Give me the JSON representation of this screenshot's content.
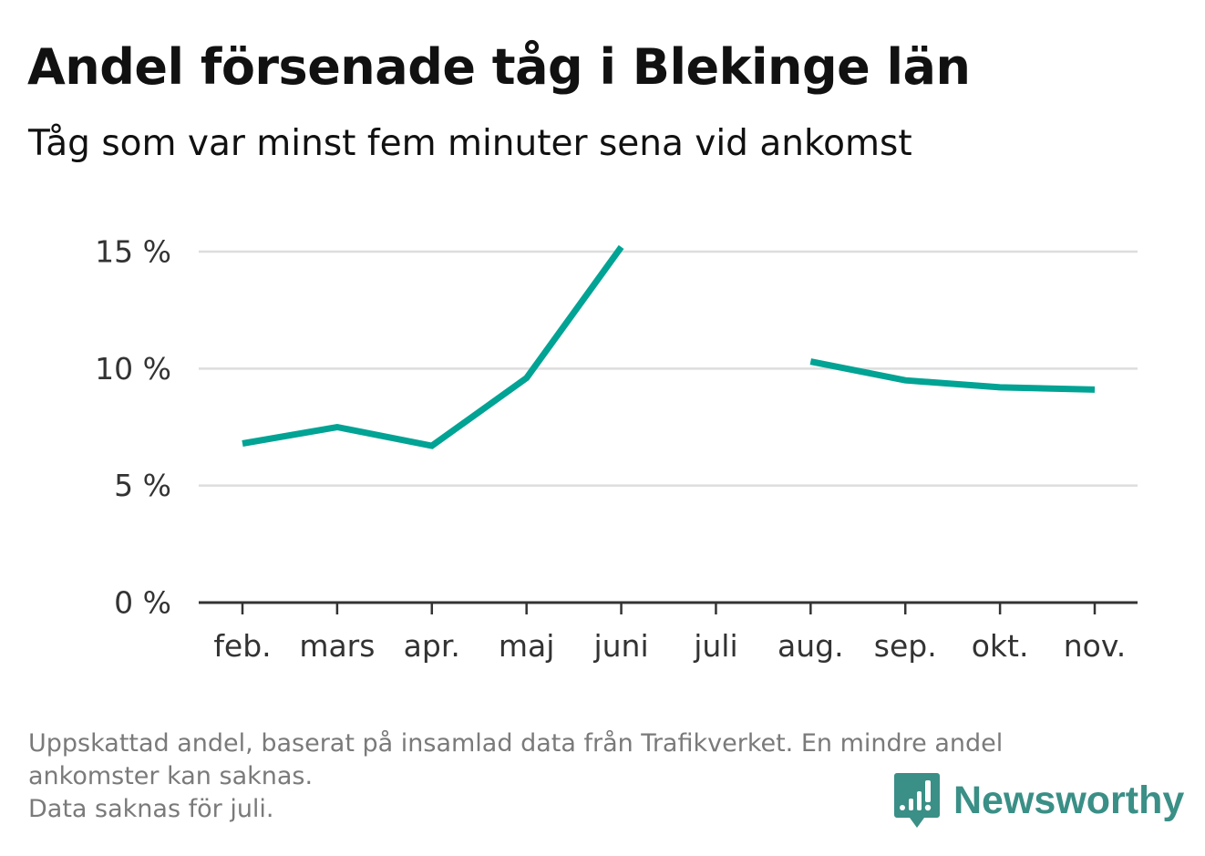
{
  "title": "Andel försenade tåg i Blekinge län",
  "subtitle": "Tåg som var minst fem minuter sena vid ankomst",
  "footnote": {
    "line1": "Uppskattad andel, baserat på insamlad data från Trafikverket. En mindre andel",
    "line2": "ankomster kan saknas.",
    "line3": "Data saknas för juli."
  },
  "brand": {
    "name": "Newsworthy",
    "icon": "bar-chart-speech-bubble-icon",
    "color": "#3a8f86"
  },
  "chart_data": {
    "type": "line",
    "categories": [
      "feb.",
      "mars",
      "apr.",
      "maj",
      "juni",
      "juli",
      "aug.",
      "sep.",
      "okt.",
      "nov."
    ],
    "series": [
      {
        "values": [
          6.8,
          7.5,
          6.7,
          9.6,
          15.2,
          null,
          10.3,
          9.5,
          9.2,
          9.1
        ]
      }
    ],
    "yticks": [
      0,
      5,
      10,
      15
    ],
    "ytick_labels": [
      "0 %",
      "5 %",
      "10 %",
      "15 %"
    ],
    "ylim": [
      0,
      15
    ],
    "xlabel": "",
    "ylabel": "",
    "grid": true,
    "line_color": "#00a394",
    "gridline_color": "#dddddd",
    "axis_color": "#333333"
  }
}
